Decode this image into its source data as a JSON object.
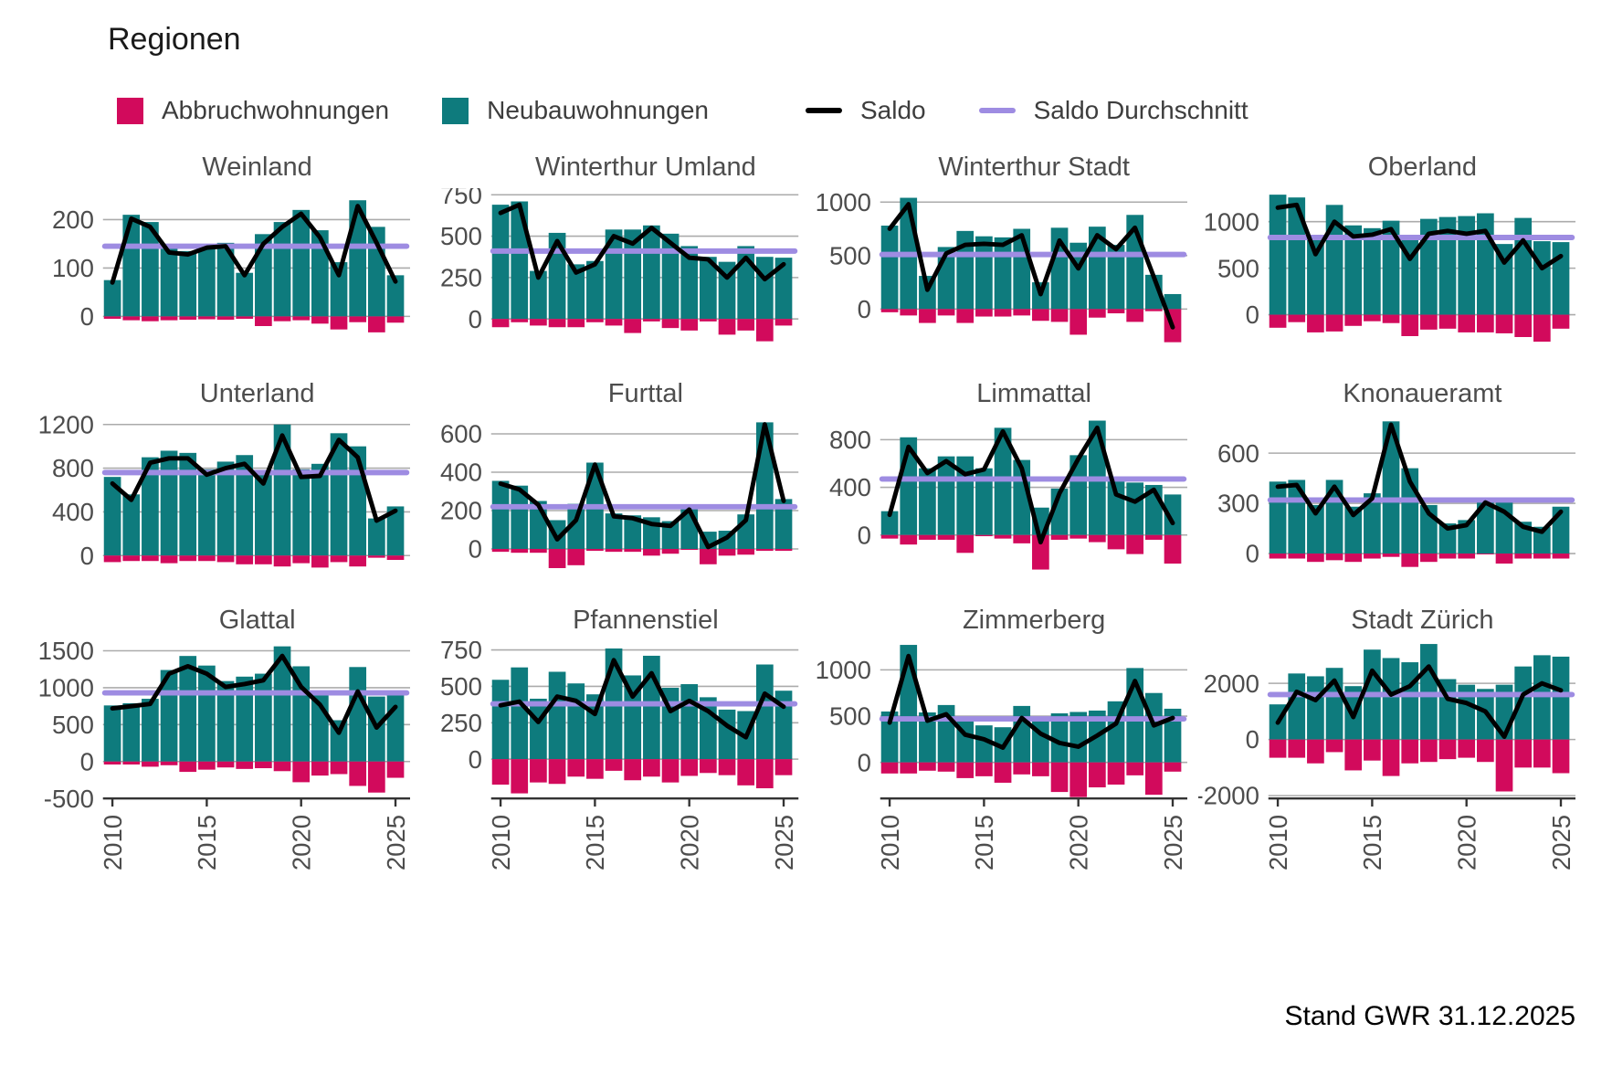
{
  "page": {
    "title": "Regionen",
    "footer": "Stand GWR 31.12.2025"
  },
  "colors": {
    "abbruch": "#D20A5C",
    "neubau": "#0E7B7D",
    "saldo": "#000000",
    "saldo_durchschnitt": "#9E8CE2",
    "grid": "#ABABAB",
    "axis": "#333333",
    "tick_text": "#4D4D4D"
  },
  "legend": {
    "items": [
      {
        "label": "Abbruchwohnungen",
        "swatch": "square",
        "color_key": "abbruch"
      },
      {
        "label": "Neubauwohnungen",
        "swatch": "square",
        "color_key": "neubau"
      },
      {
        "label": "Saldo",
        "swatch": "line",
        "color_key": "saldo"
      },
      {
        "label": "Saldo Durchschnitt",
        "swatch": "line",
        "color_key": "saldo_durchschnitt"
      }
    ]
  },
  "x_axis": {
    "years": [
      2010,
      2011,
      2012,
      2013,
      2014,
      2015,
      2016,
      2017,
      2018,
      2019,
      2020,
      2021,
      2022,
      2023,
      2024,
      2025
    ],
    "tick_labels": [
      "2010",
      "2015",
      "2020",
      "2025"
    ],
    "tick_indices": [
      0,
      5,
      10,
      15
    ]
  },
  "chart_data": [
    {
      "type": "bar",
      "title": "Weinland",
      "yticks": [
        0,
        100,
        200
      ],
      "ylim": [
        -60,
        265
      ],
      "show_x_axis": false,
      "saldo_durchschnitt": 145,
      "series": {
        "neubauwohnungen": [
          75,
          210,
          195,
          140,
          135,
          148,
          152,
          90,
          170,
          195,
          220,
          178,
          112,
          240,
          185,
          85
        ],
        "abbruchwohnungen": [
          -5,
          -8,
          -10,
          -8,
          -7,
          -6,
          -7,
          -5,
          -20,
          -10,
          -8,
          -15,
          -27,
          -12,
          -33,
          -13
        ],
        "saldo": [
          70,
          202,
          185,
          132,
          128,
          142,
          145,
          85,
          150,
          185,
          212,
          163,
          85,
          228,
          152,
          72
        ]
      }
    },
    {
      "type": "bar",
      "title": "Winterthur Umland",
      "yticks": [
        0,
        250,
        500,
        750
      ],
      "ylim": [
        -160,
        790
      ],
      "show_x_axis": false,
      "saldo_durchschnitt": 410,
      "series": {
        "neubauwohnungen": [
          690,
          710,
          290,
          520,
          330,
          350,
          540,
          540,
          565,
          515,
          440,
          375,
          345,
          440,
          375,
          370
        ],
        "abbruchwohnungen": [
          -50,
          -20,
          -40,
          -50,
          -50,
          -20,
          -40,
          -85,
          -15,
          -55,
          -70,
          -15,
          -95,
          -70,
          -135,
          -40
        ],
        "saldo": [
          640,
          690,
          250,
          470,
          280,
          330,
          500,
          455,
          550,
          460,
          370,
          360,
          250,
          370,
          240,
          330
        ]
      }
    },
    {
      "type": "bar",
      "title": "Winterthur Stadt",
      "yticks": [
        0,
        500,
        1000
      ],
      "ylim": [
        -340,
        1130
      ],
      "show_x_axis": false,
      "saldo_durchschnitt": 510,
      "series": {
        "neubauwohnungen": [
          780,
          1040,
          310,
          580,
          730,
          680,
          670,
          750,
          250,
          760,
          620,
          770,
          600,
          880,
          320,
          140
        ],
        "abbruchwohnungen": [
          -30,
          -60,
          -130,
          -60,
          -130,
          -70,
          -70,
          -60,
          -110,
          -120,
          -240,
          -80,
          -40,
          -120,
          -20,
          -310
        ],
        "saldo": [
          750,
          980,
          180,
          520,
          600,
          610,
          600,
          690,
          140,
          640,
          380,
          690,
          560,
          760,
          300,
          -170
        ]
      }
    },
    {
      "type": "bar",
      "title": "Oberland",
      "yticks": [
        0,
        500,
        1000
      ],
      "ylim": [
        -330,
        1360
      ],
      "show_x_axis": false,
      "saldo_durchschnitt": 830,
      "series": {
        "neubauwohnungen": [
          1290,
          1260,
          840,
          1180,
          960,
          930,
          1010,
          830,
          1030,
          1050,
          1060,
          1090,
          760,
          1040,
          790,
          780
        ],
        "abbruchwohnungen": [
          -140,
          -80,
          -190,
          -180,
          -120,
          -70,
          -90,
          -230,
          -160,
          -150,
          -190,
          -190,
          -200,
          -240,
          -290,
          -150
        ],
        "saldo": [
          1150,
          1180,
          650,
          1000,
          840,
          860,
          920,
          600,
          870,
          900,
          870,
          900,
          560,
          800,
          500,
          630
        ]
      }
    },
    {
      "type": "bar",
      "title": "Unterland",
      "yticks": [
        0,
        400,
        800,
        1200
      ],
      "ylim": [
        -150,
        1290
      ],
      "show_x_axis": false,
      "saldo_durchschnitt": 760,
      "series": {
        "neubauwohnungen": [
          720,
          560,
          900,
          960,
          940,
          790,
          860,
          920,
          740,
          1200,
          790,
          840,
          1120,
          1000,
          340,
          450
        ],
        "abbruchwohnungen": [
          -60,
          -50,
          -50,
          -70,
          -50,
          -50,
          -60,
          -80,
          -80,
          -100,
          -70,
          -110,
          -60,
          -100,
          -20,
          -40
        ],
        "saldo": [
          660,
          510,
          850,
          890,
          890,
          740,
          800,
          840,
          660,
          1100,
          720,
          730,
          1060,
          900,
          320,
          410
        ]
      }
    },
    {
      "type": "bar",
      "title": "Furttal",
      "yticks": [
        0,
        200,
        400,
        600
      ],
      "ylim": [
        -120,
        700
      ],
      "show_x_axis": false,
      "saldo_durchschnitt": 220,
      "series": {
        "neubauwohnungen": [
          355,
          330,
          250,
          150,
          235,
          450,
          185,
          175,
          165,
          145,
          210,
          90,
          95,
          180,
          660,
          260
        ],
        "abbruchwohnungen": [
          -15,
          -20,
          -20,
          -100,
          -85,
          -10,
          -15,
          -15,
          -35,
          -25,
          -5,
          -80,
          -35,
          -30,
          -10,
          -10
        ],
        "saldo": [
          340,
          310,
          230,
          50,
          150,
          440,
          170,
          160,
          130,
          120,
          205,
          10,
          60,
          150,
          650,
          250
        ]
      }
    },
    {
      "type": "bar",
      "title": "Limmattal",
      "yticks": [
        0,
        400,
        800
      ],
      "ylim": [
        -310,
        1010
      ],
      "show_x_axis": false,
      "saldo_durchschnitt": 470,
      "series": {
        "neubauwohnungen": [
          200,
          820,
          560,
          660,
          660,
          560,
          900,
          630,
          230,
          390,
          670,
          960,
          460,
          440,
          420,
          340
        ],
        "abbruchwohnungen": [
          -30,
          -80,
          -40,
          -40,
          -150,
          -10,
          -30,
          -70,
          -290,
          -40,
          -30,
          -60,
          -120,
          -160,
          -40,
          -240
        ],
        "saldo": [
          170,
          740,
          520,
          620,
          510,
          550,
          870,
          560,
          -60,
          350,
          640,
          900,
          340,
          280,
          380,
          100
        ]
      }
    },
    {
      "type": "bar",
      "title": "Knonaueramt",
      "yticks": [
        0,
        300,
        600
      ],
      "ylim": [
        -110,
        830
      ],
      "show_x_axis": false,
      "saldo_durchschnitt": 320,
      "series": {
        "neubauwohnungen": [
          430,
          440,
          290,
          440,
          280,
          360,
          790,
          510,
          290,
          180,
          200,
          310,
          310,
          190,
          160,
          280
        ],
        "abbruchwohnungen": [
          -30,
          -30,
          -50,
          -40,
          -50,
          -30,
          -20,
          -80,
          -50,
          -30,
          -30,
          -5,
          -60,
          -30,
          -30,
          -30
        ],
        "saldo": [
          400,
          410,
          240,
          400,
          230,
          330,
          770,
          430,
          240,
          150,
          170,
          305,
          250,
          160,
          130,
          250
        ]
      }
    },
    {
      "type": "bar",
      "title": "Glattal",
      "yticks": [
        -500,
        0,
        500,
        1000,
        1500
      ],
      "ylim": [
        -500,
        1630
      ],
      "show_x_axis": true,
      "saldo_durchschnitt": 930,
      "series": {
        "neubauwohnungen": [
          760,
          790,
          850,
          1240,
          1430,
          1300,
          1090,
          1150,
          1190,
          1560,
          1290,
          960,
          560,
          1280,
          880,
          960
        ],
        "abbruchwohnungen": [
          -40,
          -40,
          -70,
          -50,
          -140,
          -110,
          -80,
          -100,
          -90,
          -130,
          -280,
          -190,
          -170,
          -330,
          -420,
          -220
        ],
        "saldo": [
          720,
          750,
          780,
          1190,
          1290,
          1190,
          1010,
          1050,
          1100,
          1430,
          1010,
          770,
          390,
          950,
          460,
          740
        ]
      }
    },
    {
      "type": "bar",
      "title": "Pfannenstiel",
      "yticks": [
        0,
        250,
        500,
        750
      ],
      "ylim": [
        -270,
        810
      ],
      "show_x_axis": true,
      "saldo_durchschnitt": 380,
      "series": {
        "neubauwohnungen": [
          545,
          630,
          415,
          600,
          520,
          445,
          760,
          575,
          710,
          490,
          515,
          425,
          340,
          330,
          650,
          470
        ],
        "abbruchwohnungen": [
          -175,
          -235,
          -160,
          -170,
          -120,
          -135,
          -80,
          -145,
          -120,
          -160,
          -115,
          -95,
          -110,
          -180,
          -200,
          -110
        ],
        "saldo": [
          370,
          395,
          255,
          430,
          400,
          310,
          680,
          430,
          590,
          330,
          400,
          330,
          230,
          150,
          450,
          360
        ]
      }
    },
    {
      "type": "bar",
      "title": "Zimmerberg",
      "yticks": [
        0,
        500,
        1000
      ],
      "ylim": [
        -390,
        1310
      ],
      "show_x_axis": true,
      "saldo_durchschnitt": 470,
      "series": {
        "neubauwohnungen": [
          550,
          1270,
          540,
          620,
          470,
          400,
          380,
          610,
          460,
          530,
          545,
          560,
          660,
          1020,
          750,
          580
        ],
        "abbruchwohnungen": [
          -120,
          -120,
          -90,
          -100,
          -170,
          -150,
          -220,
          -130,
          -150,
          -320,
          -375,
          -270,
          -240,
          -140,
          -350,
          -100
        ],
        "saldo": [
          430,
          1150,
          450,
          520,
          300,
          250,
          160,
          480,
          310,
          210,
          170,
          290,
          420,
          880,
          400,
          480
        ]
      }
    },
    {
      "type": "bar",
      "title": "Stadt Zürich",
      "yticks": [
        -2000,
        0,
        2000
      ],
      "ylim": [
        -2100,
        3500
      ],
      "show_x_axis": true,
      "saldo_durchschnitt": 1600,
      "series": {
        "neubauwohnungen": [
          1250,
          2350,
          2250,
          2550,
          1900,
          3200,
          2900,
          2750,
          3400,
          2150,
          1950,
          1800,
          1950,
          2600,
          3000,
          2950
        ],
        "abbruchwohnungen": [
          -650,
          -650,
          -850,
          -450,
          -1100,
          -750,
          -1300,
          -850,
          -800,
          -700,
          -650,
          -800,
          -1850,
          -1000,
          -1000,
          -1200
        ],
        "saldo": [
          600,
          1700,
          1400,
          2100,
          800,
          2450,
          1600,
          1900,
          2600,
          1450,
          1300,
          1000,
          100,
          1600,
          2000,
          1750
        ]
      }
    }
  ]
}
